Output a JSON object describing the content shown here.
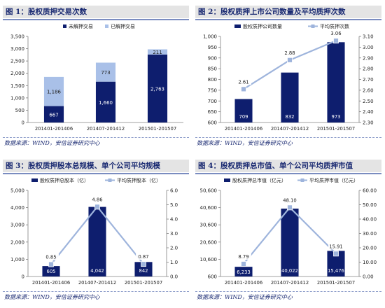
{
  "colors": {
    "dark_bar": "#0e1e6e",
    "light_bar": "#a9c0e8",
    "line": "#9eb4dc",
    "marker": "#9eb4dc"
  },
  "source_text": "数据来源：WIND，安信证券研究中心",
  "chart_data": [
    {
      "type": "bar",
      "stacked": true,
      "title": "图 1：股权质押交易次数",
      "categories": [
        "201401-201406",
        "201407-201412",
        "201501-201507"
      ],
      "series": [
        {
          "name": "未解押交易",
          "values": [
            667,
            1660,
            2763
          ],
          "color": "#0e1e6e"
        },
        {
          "name": "已解押交易",
          "values": [
            1186,
            773,
            211
          ],
          "color": "#a9c0e8"
        }
      ],
      "ylim": [
        0,
        3500
      ],
      "yticks": [
        "0",
        "500",
        "1,000",
        "1,500",
        "2,000",
        "2,500",
        "3,000",
        "3,500"
      ],
      "legend": "top-center"
    },
    {
      "type": "bar",
      "title": "图 2：股权质押上市公司数量及平均质押次数",
      "categories": [
        "201401-201406",
        "201407-201412",
        "201501-201507"
      ],
      "series": [
        {
          "name": "股权质押公司数量",
          "values": [
            709,
            832,
            973
          ],
          "labels": [
            "709",
            "832",
            "973"
          ],
          "axis": "left"
        },
        {
          "name": "平均质押次数",
          "values": [
            2.61,
            2.88,
            3.06
          ],
          "labels": [
            "2.61",
            "2.88",
            "3.06"
          ],
          "axis": "right",
          "type": "line"
        }
      ],
      "ylim": [
        600,
        1000
      ],
      "yticks": [
        "600",
        "650",
        "700",
        "750",
        "800",
        "850",
        "900",
        "950",
        "1,000"
      ],
      "y2lim": [
        2.3,
        3.1
      ],
      "y2ticks": [
        "2.30",
        "2.40",
        "2.50",
        "2.60",
        "2.70",
        "2.80",
        "2.90",
        "3.00",
        "3.10"
      ],
      "legend": "top"
    },
    {
      "type": "bar",
      "title": "图 3：股权质押股本总规模、单个公司平均规模",
      "categories": [
        "201401-201406",
        "201407-201412",
        "201501-201507"
      ],
      "series": [
        {
          "name": "股权质押总股本（亿）",
          "values": [
            605,
            4042,
            842
          ],
          "labels": [
            "605",
            "4,042",
            "842"
          ],
          "axis": "left"
        },
        {
          "name": "平均质押股本（亿）",
          "values": [
            0.85,
            4.86,
            0.87
          ],
          "labels": [
            "0.85",
            "4.86",
            "0.87"
          ],
          "axis": "right",
          "type": "line"
        }
      ],
      "ylim": [
        0,
        5000
      ],
      "yticks": [
        "0",
        "1,000",
        "2,000",
        "3,000",
        "4,000",
        "5,000"
      ],
      "y2lim": [
        0,
        6
      ],
      "y2ticks": [
        "0.0",
        "1.0",
        "2.0",
        "3.0",
        "4.0",
        "5.0",
        "6.0"
      ],
      "legend": "top"
    },
    {
      "type": "bar",
      "title": "图 4：股权质押总市值、单个公司平均质押市值",
      "categories": [
        "201401-201406",
        "201407-201412",
        "201501-201507"
      ],
      "series": [
        {
          "name": "股权质押总市值（亿元）",
          "values": [
            6233,
            40022,
            15476
          ],
          "labels": [
            "6,233",
            "40,022",
            "15,476"
          ],
          "axis": "left"
        },
        {
          "name": "平均质押市值（亿元）",
          "values": [
            8.79,
            48.1,
            15.91
          ],
          "labels": [
            "8.79",
            "48.10",
            "15.91"
          ],
          "axis": "right",
          "type": "line"
        }
      ],
      "ylim": [
        600,
        50600
      ],
      "yticks": [
        "600",
        "10,600",
        "20,600",
        "30,600",
        "40,600",
        "50,600"
      ],
      "y2lim": [
        0,
        60
      ],
      "y2ticks": [
        "0.00",
        "10.00",
        "20.00",
        "30.00",
        "40.00",
        "50.00",
        "60.00"
      ],
      "legend": "top"
    }
  ]
}
